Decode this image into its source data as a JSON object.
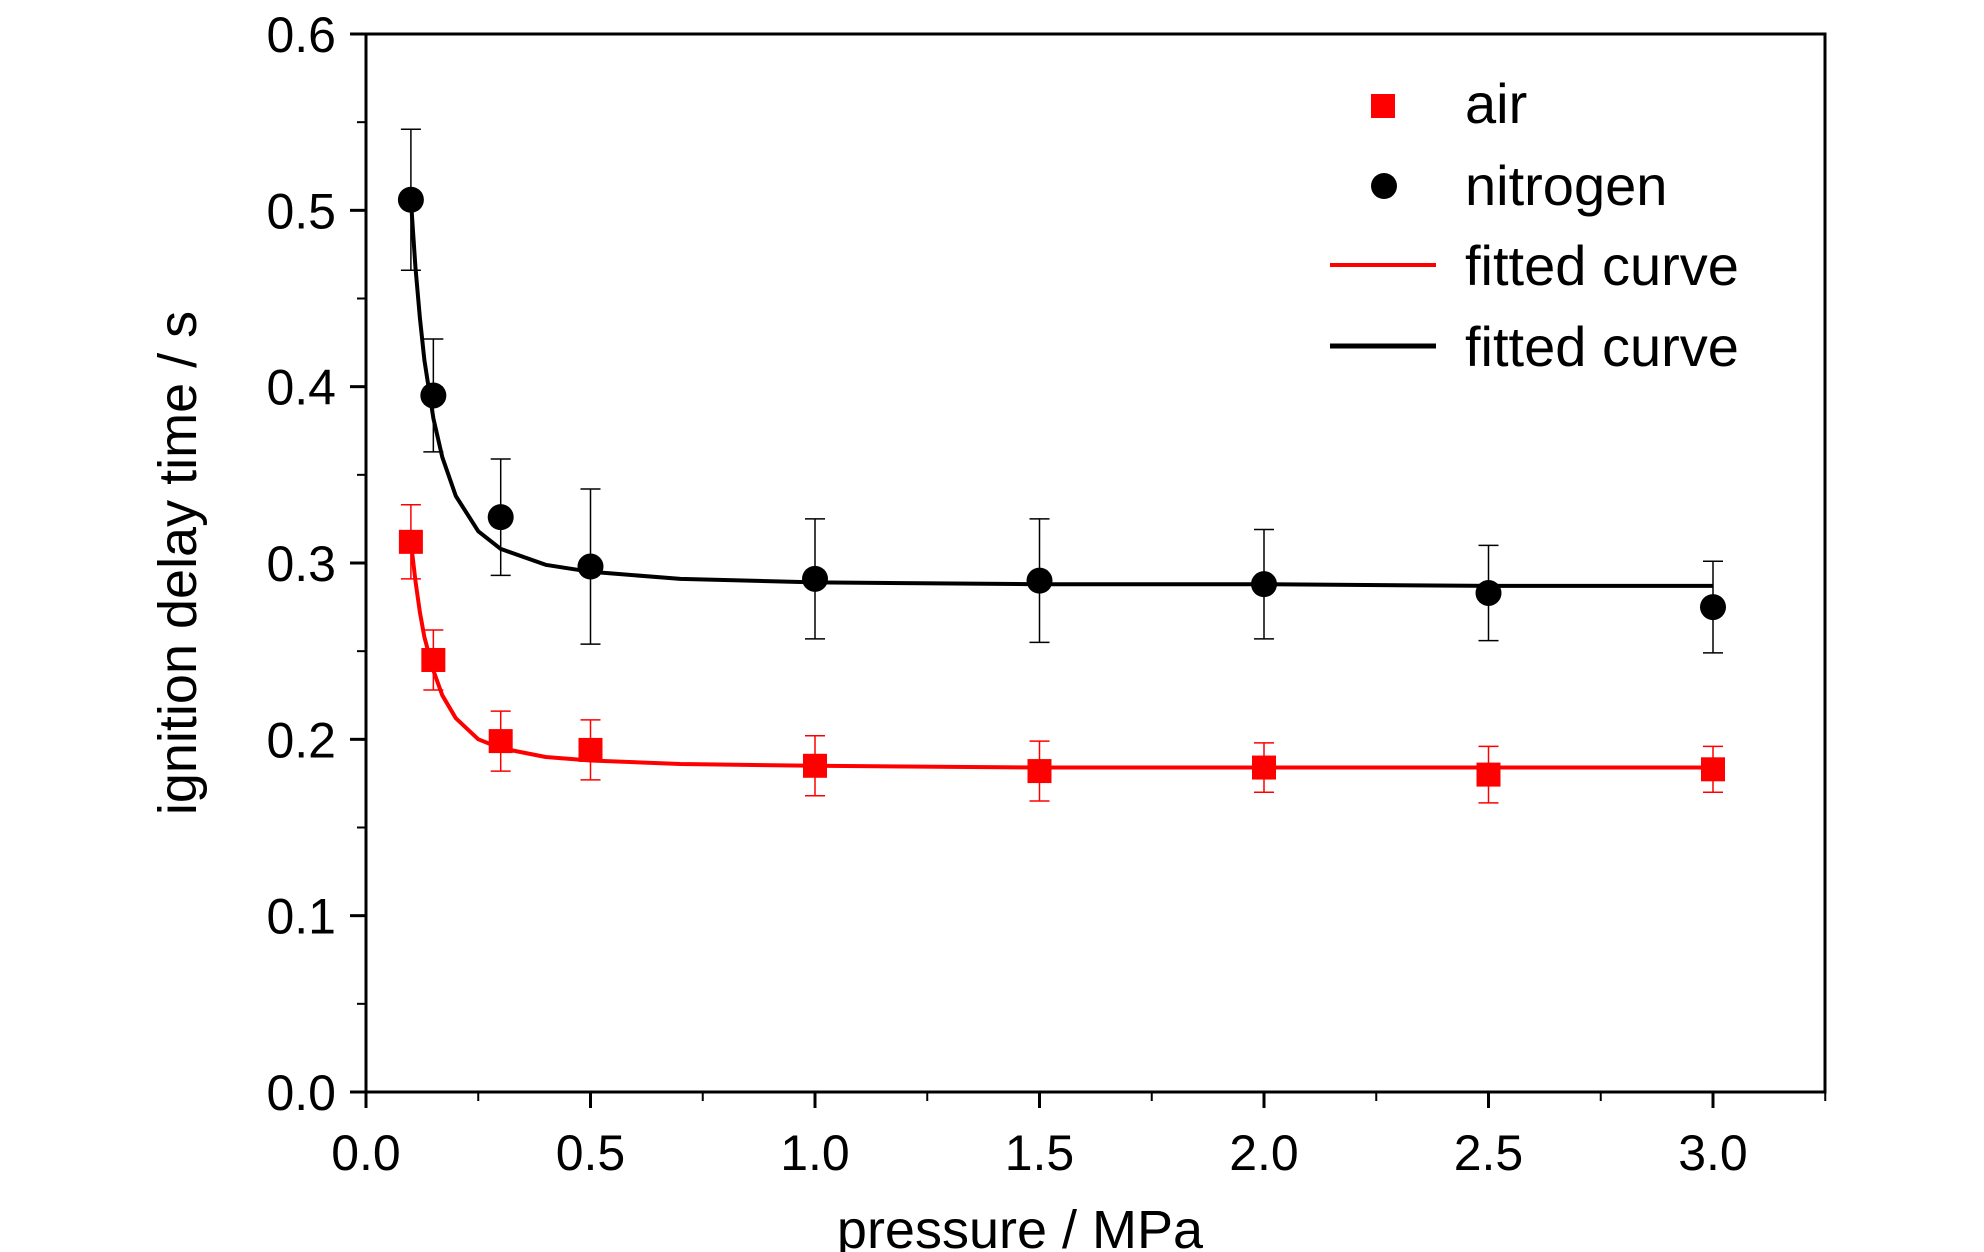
{
  "chart_data": {
    "type": "scatter",
    "title": "",
    "xlabel": "pressure / MPa",
    "ylabel": "ignition delay time / s",
    "xlim": [
      0.0,
      3.25
    ],
    "ylim": [
      0.0,
      0.6
    ],
    "x_ticks": [
      "0.0",
      "0.5",
      "1.0",
      "1.5",
      "2.0",
      "2.5",
      "3.0"
    ],
    "y_ticks": [
      "0.0",
      "0.1",
      "0.2",
      "0.3",
      "0.4",
      "0.5",
      "0.6"
    ],
    "grid": false,
    "legend_position": "top-right",
    "series": [
      {
        "name": "air",
        "kind": "points",
        "marker": "square",
        "color": "#ff0000",
        "x": [
          0.1,
          0.15,
          0.3,
          0.5,
          1.0,
          1.5,
          2.0,
          2.5,
          3.0
        ],
        "y": [
          0.312,
          0.245,
          0.199,
          0.194,
          0.185,
          0.182,
          0.184,
          0.18,
          0.183
        ],
        "error": [
          0.021,
          0.017,
          0.017,
          0.017,
          0.017,
          0.017,
          0.014,
          0.016,
          0.013
        ]
      },
      {
        "name": "nitrogen",
        "kind": "points",
        "marker": "circle",
        "color": "#000000",
        "x": [
          0.1,
          0.15,
          0.3,
          0.5,
          1.0,
          1.5,
          2.0,
          2.5,
          3.0
        ],
        "y": [
          0.506,
          0.395,
          0.326,
          0.298,
          0.291,
          0.29,
          0.288,
          0.283,
          0.275
        ],
        "error": [
          0.04,
          0.032,
          0.033,
          0.044,
          0.034,
          0.035,
          0.031,
          0.027,
          0.026
        ]
      },
      {
        "name": "fitted curve",
        "kind": "line",
        "color": "#ff0000",
        "x": [
          0.1,
          0.11,
          0.12,
          0.13,
          0.15,
          0.17,
          0.2,
          0.25,
          0.3,
          0.4,
          0.5,
          0.7,
          1.0,
          1.5,
          2.0,
          2.5,
          3.0
        ],
        "y": [
          0.312,
          0.29,
          0.272,
          0.258,
          0.239,
          0.225,
          0.212,
          0.2,
          0.195,
          0.19,
          0.188,
          0.186,
          0.185,
          0.184,
          0.184,
          0.184,
          0.184
        ]
      },
      {
        "name": "fitted curve",
        "kind": "line",
        "color": "#000000",
        "x": [
          0.1,
          0.11,
          0.12,
          0.13,
          0.15,
          0.17,
          0.2,
          0.25,
          0.3,
          0.4,
          0.5,
          0.7,
          1.0,
          1.5,
          2.0,
          2.5,
          3.0
        ],
        "y": [
          0.506,
          0.468,
          0.439,
          0.415,
          0.382,
          0.36,
          0.338,
          0.318,
          0.308,
          0.299,
          0.295,
          0.291,
          0.289,
          0.288,
          0.288,
          0.287,
          0.287
        ]
      }
    ]
  }
}
